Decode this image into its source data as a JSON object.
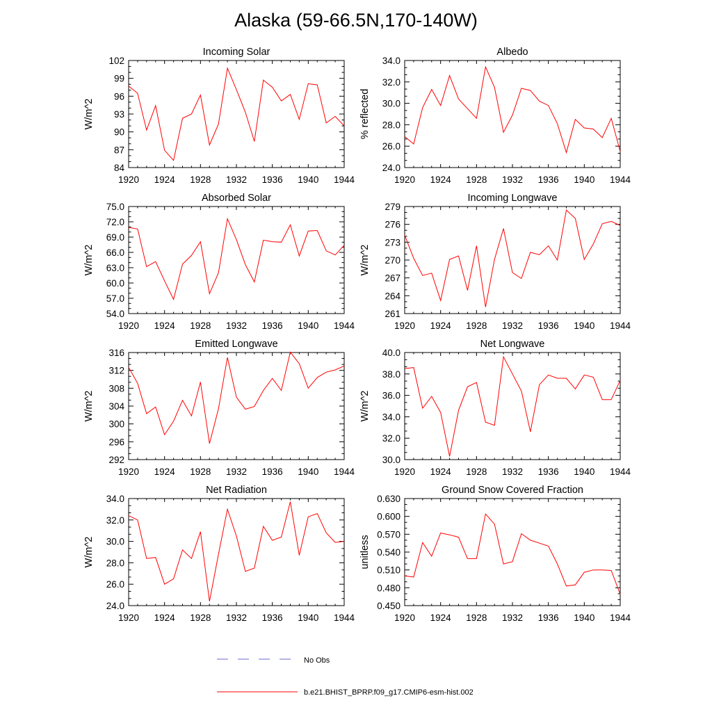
{
  "title": "Alaska (59-66.5N,170-140W)",
  "colors": {
    "model_line": "#ff0000",
    "obs_line": "#6a6acd",
    "axis": "#000000"
  },
  "legend": {
    "obs_label": "No Obs",
    "model_label": "b.e21.BHIST_BPRP.f09_g17.CMIP6-esm-hist.002"
  },
  "chart_data": [
    {
      "type": "line",
      "title": "Incoming Solar",
      "ylabel": "W/m^2",
      "xlim": [
        1920,
        1944
      ],
      "xticks": [
        1920,
        1924,
        1928,
        1932,
        1936,
        1940,
        1944
      ],
      "xtick_labels": [
        "1920",
        "1924",
        "1928",
        "1932",
        "1936",
        "1940",
        "1944"
      ],
      "ylim": [
        84,
        102
      ],
      "yticks": [
        84,
        87,
        90,
        93,
        96,
        99,
        102
      ],
      "ytick_labels": [
        "84",
        "87",
        "90",
        "93",
        "96",
        "99",
        "102"
      ],
      "x": [
        1920,
        1921,
        1922,
        1923,
        1924,
        1925,
        1926,
        1927,
        1928,
        1929,
        1930,
        1931,
        1932,
        1933,
        1934,
        1935,
        1936,
        1937,
        1938,
        1939,
        1940,
        1941,
        1942,
        1943,
        1944
      ],
      "series": [
        {
          "name": "b.e21.BHIST_BPRP.f09_g17.CMIP6-esm-hist.002",
          "values": [
            97.7,
            96.5,
            90.3,
            94.4,
            86.9,
            85.2,
            92.3,
            93.0,
            96.2,
            87.8,
            91.3,
            100.7,
            97.1,
            93.3,
            88.4,
            98.7,
            97.5,
            95.2,
            96.3,
            92.1,
            98.1,
            97.9,
            91.5,
            92.6,
            91.0
          ]
        }
      ]
    },
    {
      "type": "line",
      "title": "Albedo",
      "ylabel": "% reflected",
      "xlim": [
        1920,
        1944
      ],
      "xticks": [
        1920,
        1924,
        1928,
        1932,
        1936,
        1940,
        1944
      ],
      "xtick_labels": [
        "1920",
        "1924",
        "1928",
        "1932",
        "1936",
        "1940",
        "1944"
      ],
      "ylim": [
        24,
        34
      ],
      "yticks": [
        24,
        26,
        28,
        30,
        32,
        34
      ],
      "ytick_labels": [
        "24.0",
        "26.0",
        "28.0",
        "30.0",
        "32.0",
        "34.0"
      ],
      "x": [
        1920,
        1921,
        1922,
        1923,
        1924,
        1925,
        1926,
        1927,
        1928,
        1929,
        1930,
        1931,
        1932,
        1933,
        1934,
        1935,
        1936,
        1937,
        1938,
        1939,
        1940,
        1941,
        1942,
        1943,
        1944
      ],
      "series": [
        {
          "name": "b.e21.BHIST_BPRP.f09_g17.CMIP6-esm-hist.002",
          "values": [
            26.9,
            26.2,
            29.6,
            31.3,
            29.8,
            32.6,
            30.4,
            29.5,
            28.6,
            33.4,
            31.5,
            27.3,
            28.9,
            31.4,
            31.2,
            30.2,
            29.8,
            28.1,
            25.4,
            28.5,
            27.7,
            27.6,
            26.8,
            28.6,
            25.5
          ]
        }
      ]
    },
    {
      "type": "line",
      "title": "Absorbed Solar",
      "ylabel": "W/m^2",
      "xlim": [
        1920,
        1944
      ],
      "xticks": [
        1920,
        1924,
        1928,
        1932,
        1936,
        1940,
        1944
      ],
      "xtick_labels": [
        "1920",
        "1924",
        "1928",
        "1932",
        "1936",
        "1940",
        "1944"
      ],
      "ylim": [
        54,
        75
      ],
      "yticks": [
        54,
        57,
        60,
        63,
        66,
        69,
        72,
        75
      ],
      "ytick_labels": [
        "54.0",
        "57.0",
        "60.0",
        "63.0",
        "66.0",
        "69.0",
        "72.0",
        "75.0"
      ],
      "x": [
        1920,
        1921,
        1922,
        1923,
        1924,
        1925,
        1926,
        1927,
        1928,
        1929,
        1930,
        1931,
        1932,
        1933,
        1934,
        1935,
        1936,
        1937,
        1938,
        1939,
        1940,
        1941,
        1942,
        1943,
        1944
      ],
      "series": [
        {
          "name": "b.e21.BHIST_BPRP.f09_g17.CMIP6-esm-hist.002",
          "values": [
            70.9,
            70.6,
            63.2,
            64.2,
            60.4,
            56.8,
            63.7,
            65.4,
            68.1,
            57.9,
            62.0,
            72.6,
            68.5,
            63.6,
            60.2,
            68.4,
            68.1,
            68.0,
            71.4,
            65.3,
            70.2,
            70.3,
            66.3,
            65.5,
            67.4
          ]
        }
      ]
    },
    {
      "type": "line",
      "title": "Incoming Longwave",
      "ylabel": "W/m^2",
      "xlim": [
        1920,
        1944
      ],
      "xticks": [
        1920,
        1924,
        1928,
        1932,
        1936,
        1940,
        1944
      ],
      "xtick_labels": [
        "1920",
        "1924",
        "1928",
        "1932",
        "1936",
        "1940",
        "1944"
      ],
      "ylim": [
        261,
        279
      ],
      "yticks": [
        261,
        264,
        267,
        270,
        273,
        276,
        279
      ],
      "ytick_labels": [
        "261",
        "264",
        "267",
        "270",
        "273",
        "276",
        "279"
      ],
      "x": [
        1920,
        1921,
        1922,
        1923,
        1924,
        1925,
        1926,
        1927,
        1928,
        1929,
        1930,
        1931,
        1932,
        1933,
        1934,
        1935,
        1936,
        1937,
        1938,
        1939,
        1940,
        1941,
        1942,
        1943,
        1944
      ],
      "series": [
        {
          "name": "b.e21.BHIST_BPRP.f09_g17.CMIP6-esm-hist.002",
          "values": [
            274.2,
            270.3,
            267.4,
            267.8,
            263.2,
            270.1,
            270.7,
            264.9,
            272.4,
            262.1,
            270.1,
            275.3,
            267.9,
            266.9,
            271.3,
            270.9,
            272.4,
            270.0,
            278.4,
            277.0,
            270.1,
            272.7,
            276.1,
            276.5,
            275.8
          ]
        }
      ]
    },
    {
      "type": "line",
      "title": "Emitted Longwave",
      "ylabel": "W/m^2",
      "xlim": [
        1920,
        1944
      ],
      "xticks": [
        1920,
        1924,
        1928,
        1932,
        1936,
        1940,
        1944
      ],
      "xtick_labels": [
        "1920",
        "1924",
        "1928",
        "1932",
        "1936",
        "1940",
        "1944"
      ],
      "ylim": [
        292,
        316
      ],
      "yticks": [
        292,
        296,
        300,
        304,
        308,
        312,
        316
      ],
      "ytick_labels": [
        "292",
        "296",
        "300",
        "304",
        "308",
        "312",
        "316"
      ],
      "x": [
        1920,
        1921,
        1922,
        1923,
        1924,
        1925,
        1926,
        1927,
        1928,
        1929,
        1930,
        1931,
        1932,
        1933,
        1934,
        1935,
        1936,
        1937,
        1938,
        1939,
        1940,
        1941,
        1942,
        1943,
        1944
      ],
      "series": [
        {
          "name": "b.e21.BHIST_BPRP.f09_g17.CMIP6-esm-hist.002",
          "values": [
            312.7,
            309.1,
            302.3,
            303.8,
            297.6,
            300.6,
            305.3,
            301.8,
            309.4,
            295.6,
            303.4,
            314.9,
            306.0,
            303.3,
            303.9,
            307.5,
            310.2,
            307.5,
            316.1,
            313.5,
            308.0,
            310.4,
            311.6,
            312.1,
            313.0
          ]
        }
      ]
    },
    {
      "type": "line",
      "title": "Net Longwave",
      "ylabel": "W/m^2",
      "xlim": [
        1920,
        1944
      ],
      "xticks": [
        1920,
        1924,
        1928,
        1932,
        1936,
        1940,
        1944
      ],
      "xtick_labels": [
        "1920",
        "1924",
        "1928",
        "1932",
        "1936",
        "1940",
        "1944"
      ],
      "ylim": [
        30,
        40
      ],
      "yticks": [
        30,
        32,
        34,
        36,
        38,
        40
      ],
      "ytick_labels": [
        "30.0",
        "32.0",
        "34.0",
        "36.0",
        "38.0",
        "40.0"
      ],
      "x": [
        1920,
        1921,
        1922,
        1923,
        1924,
        1925,
        1926,
        1927,
        1928,
        1929,
        1930,
        1931,
        1932,
        1933,
        1934,
        1935,
        1936,
        1937,
        1938,
        1939,
        1940,
        1941,
        1942,
        1943,
        1944
      ],
      "series": [
        {
          "name": "b.e21.BHIST_BPRP.f09_g17.CMIP6-esm-hist.002",
          "values": [
            38.5,
            38.6,
            34.8,
            35.9,
            34.4,
            30.3,
            34.6,
            36.8,
            37.2,
            33.5,
            33.2,
            39.6,
            38.0,
            36.4,
            32.6,
            37.0,
            37.9,
            37.6,
            37.6,
            36.6,
            37.9,
            37.7,
            35.6,
            35.6,
            37.4
          ]
        }
      ]
    },
    {
      "type": "line",
      "title": "Net Radiation",
      "ylabel": "W/m^2",
      "xlim": [
        1920,
        1944
      ],
      "xticks": [
        1920,
        1924,
        1928,
        1932,
        1936,
        1940,
        1944
      ],
      "xtick_labels": [
        "1920",
        "1924",
        "1928",
        "1932",
        "1936",
        "1940",
        "1944"
      ],
      "ylim": [
        24,
        34
      ],
      "yticks": [
        24,
        26,
        28,
        30,
        32,
        34
      ],
      "ytick_labels": [
        "24.0",
        "26.0",
        "28.0",
        "30.0",
        "32.0",
        "34.0"
      ],
      "x": [
        1920,
        1921,
        1922,
        1923,
        1924,
        1925,
        1926,
        1927,
        1928,
        1929,
        1930,
        1931,
        1932,
        1933,
        1934,
        1935,
        1936,
        1937,
        1938,
        1939,
        1940,
        1941,
        1942,
        1943,
        1944
      ],
      "series": [
        {
          "name": "b.e21.BHIST_BPRP.f09_g17.CMIP6-esm-hist.002",
          "values": [
            32.4,
            32.0,
            28.4,
            28.5,
            26.0,
            26.5,
            29.2,
            28.4,
            30.9,
            24.4,
            28.8,
            33.0,
            30.5,
            27.2,
            27.5,
            31.4,
            30.1,
            30.4,
            33.7,
            28.7,
            32.3,
            32.6,
            30.8,
            29.9,
            30.0
          ]
        }
      ]
    },
    {
      "type": "line",
      "title": "Ground Snow Covered Fraction",
      "ylabel": "unitless",
      "xlim": [
        1920,
        1944
      ],
      "xticks": [
        1920,
        1924,
        1928,
        1932,
        1936,
        1940,
        1944
      ],
      "xtick_labels": [
        "1920",
        "1924",
        "1928",
        "1932",
        "1936",
        "1940",
        "1944"
      ],
      "ylim": [
        0.45,
        0.63
      ],
      "yticks": [
        0.45,
        0.48,
        0.51,
        0.54,
        0.57,
        0.6,
        0.63
      ],
      "ytick_labels": [
        "0.450",
        "0.480",
        "0.510",
        "0.540",
        "0.570",
        "0.600",
        "0.630"
      ],
      "x": [
        1920,
        1921,
        1922,
        1923,
        1924,
        1925,
        1926,
        1927,
        1928,
        1929,
        1930,
        1931,
        1932,
        1933,
        1934,
        1935,
        1936,
        1937,
        1938,
        1939,
        1940,
        1941,
        1942,
        1943,
        1944
      ],
      "series": [
        {
          "name": "b.e21.BHIST_BPRP.f09_g17.CMIP6-esm-hist.002",
          "values": [
            0.5,
            0.498,
            0.556,
            0.533,
            0.572,
            0.569,
            0.565,
            0.529,
            0.529,
            0.604,
            0.587,
            0.52,
            0.524,
            0.571,
            0.56,
            0.555,
            0.55,
            0.52,
            0.483,
            0.485,
            0.506,
            0.51,
            0.51,
            0.509,
            0.469
          ]
        }
      ]
    }
  ]
}
